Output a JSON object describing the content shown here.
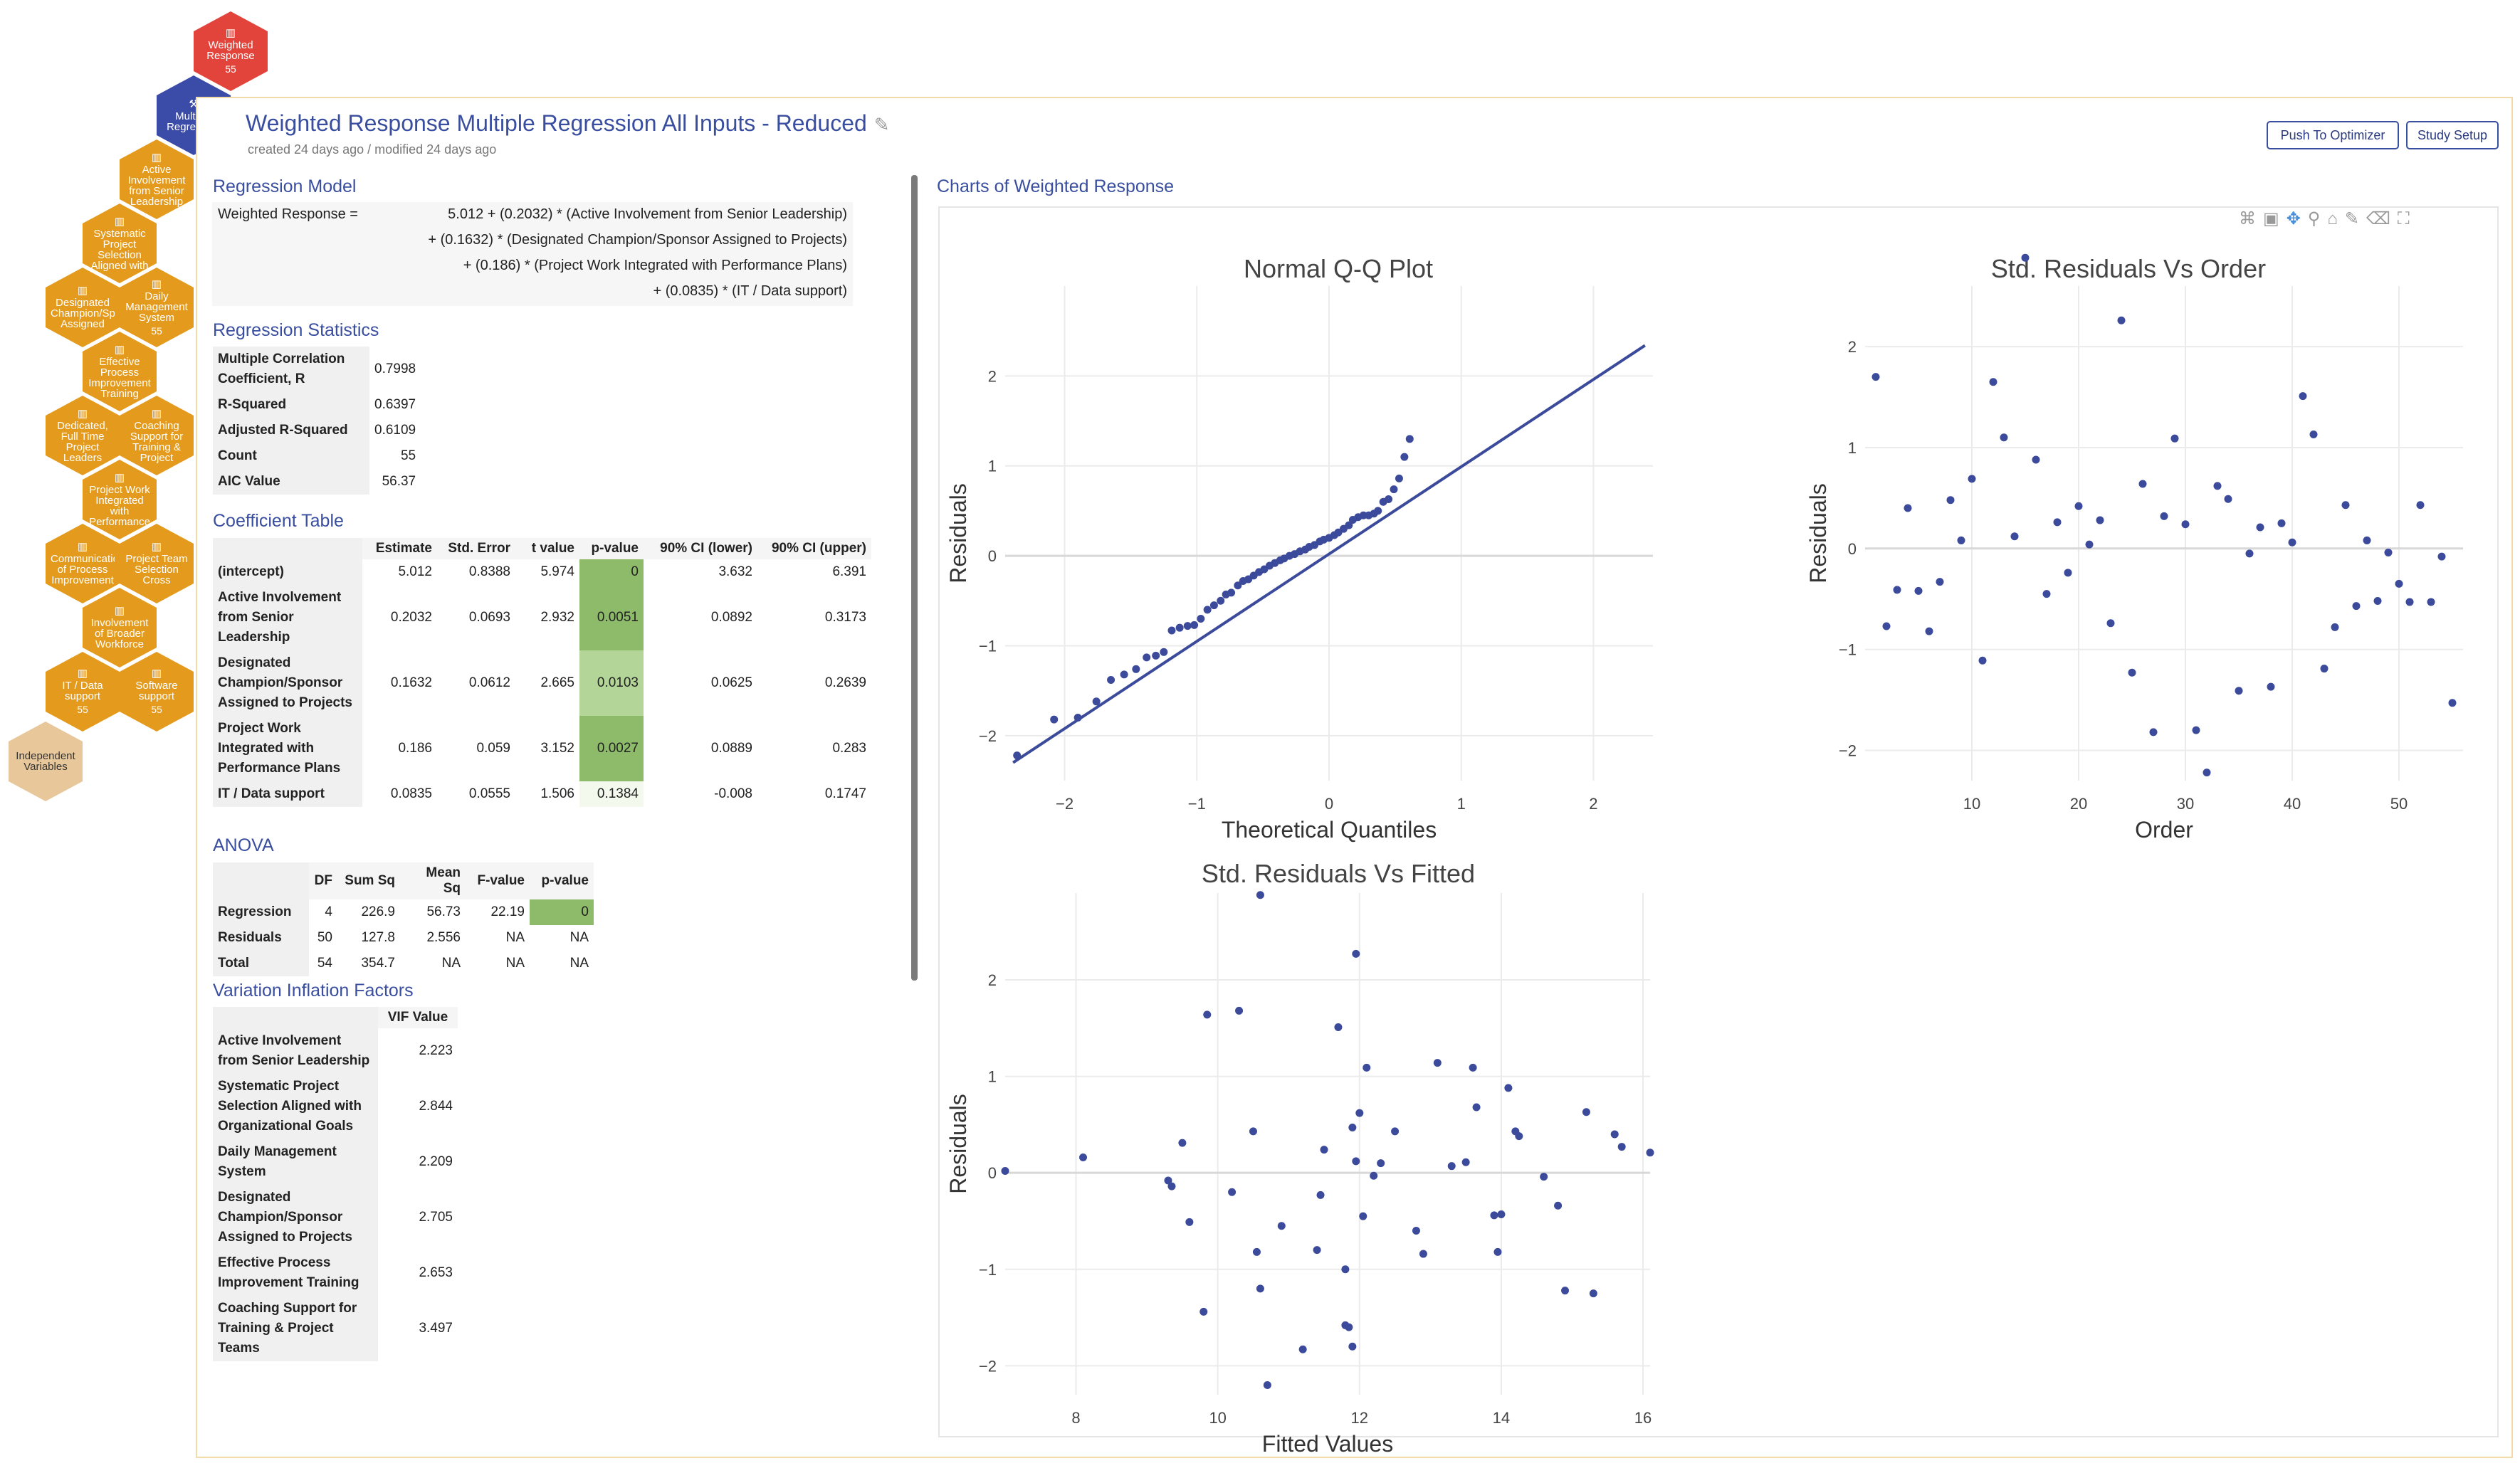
{
  "nav": {
    "hexes": [
      {
        "label": "Weighted Response",
        "count": "55"
      },
      {
        "label": "Multiple Regression"
      },
      {
        "label": "Active Involvement from Senior Leadership"
      },
      {
        "label": "Systematic Project Selection Aligned with"
      },
      {
        "label": "Designated Champion/Sponsor Assigned"
      },
      {
        "label": "Daily Management System",
        "count": "55"
      },
      {
        "label": "Effective Process Improvement Training"
      },
      {
        "label": "Dedicated, Full Time Project Leaders"
      },
      {
        "label": "Coaching Support for Training & Project"
      },
      {
        "label": "Project Work Integrated with Performance"
      },
      {
        "label": "Communication of Process Improvement"
      },
      {
        "label": "Project Team Selection Cross"
      },
      {
        "label": "Involvement of Broader Workforce"
      },
      {
        "label": "IT / Data support",
        "count": "55"
      },
      {
        "label": "Software support",
        "count": "55"
      },
      {
        "label": "Independent Variables"
      }
    ]
  },
  "header": {
    "title": "Weighted Response Multiple Regression All Inputs - Reduced",
    "subtitle": "created 24 days ago / modified 24 days ago",
    "push_label": "Push To Optimizer",
    "setup_label": "Study Setup"
  },
  "model": {
    "title": "Regression Model",
    "lhs": "Weighted Response =",
    "lines": [
      "5.012 + (0.2032) * (Active Involvement from Senior Leadership)",
      "+ (0.1632) * (Designated Champion/Sponsor Assigned to Projects)",
      "+ (0.186) * (Project Work Integrated with Performance Plans)",
      "+ (0.0835) * (IT / Data support)"
    ]
  },
  "stats": {
    "title": "Regression Statistics",
    "rows": [
      {
        "label": "Multiple Correlation Coefficient, R",
        "value": "0.7998"
      },
      {
        "label": "R-Squared",
        "value": "0.6397"
      },
      {
        "label": "Adjusted R-Squared",
        "value": "0.6109"
      },
      {
        "label": "Count",
        "value": "55"
      },
      {
        "label": "AIC Value",
        "value": "56.37"
      }
    ]
  },
  "coef": {
    "title": "Coefficient Table",
    "headers": [
      "Estimate",
      "Std. Error",
      "t value",
      "p-value",
      "90% CI (lower)",
      "90% CI (upper)"
    ],
    "rows": [
      {
        "label": "(intercept)",
        "cells": [
          "5.012",
          "0.8388",
          "5.974",
          "0",
          "3.632",
          "6.391"
        ]
      },
      {
        "label": "Active Involvement from Senior Leadership",
        "cells": [
          "0.2032",
          "0.0693",
          "2.932",
          "0.0051",
          "0.0892",
          "0.3173"
        ]
      },
      {
        "label": "Designated Champion/Sponsor Assigned to Projects",
        "cells": [
          "0.1632",
          "0.0612",
          "2.665",
          "0.0103",
          "0.0625",
          "0.2639"
        ]
      },
      {
        "label": "Project Work Integrated with Performance Plans",
        "cells": [
          "0.186",
          "0.059",
          "3.152",
          "0.0027",
          "0.0889",
          "0.283"
        ]
      },
      {
        "label": "IT / Data support",
        "cells": [
          "0.0835",
          "0.0555",
          "1.506",
          "0.1384",
          "-0.008",
          "0.1747"
        ]
      }
    ]
  },
  "anova": {
    "title": "ANOVA",
    "headers": [
      "DF",
      "Sum Sq",
      "Mean Sq",
      "F-value",
      "p-value"
    ],
    "rows": [
      {
        "label": "Regression",
        "cells": [
          "4",
          "226.9",
          "56.73",
          "22.19",
          "0"
        ]
      },
      {
        "label": "Residuals",
        "cells": [
          "50",
          "127.8",
          "2.556",
          "NA",
          "NA"
        ]
      },
      {
        "label": "Total",
        "cells": [
          "54",
          "354.7",
          "NA",
          "NA",
          "NA"
        ]
      }
    ]
  },
  "vif": {
    "title": "Variation Inflation Factors",
    "header": "VIF Value",
    "rows": [
      {
        "label": "Active Involvement from Senior Leadership",
        "value": "2.223"
      },
      {
        "label": "Systematic Project Selection Aligned with Organizational Goals",
        "value": "2.844"
      },
      {
        "label": "Daily Management System",
        "value": "2.209"
      },
      {
        "label": "Designated Champion/Sponsor Assigned to Projects",
        "value": "2.705"
      },
      {
        "label": "Effective Process Improvement Training",
        "value": "2.653"
      },
      {
        "label": "Coaching Support for Training & Project Teams",
        "value": "3.497"
      }
    ]
  },
  "charts_title": "Charts of Weighted Response",
  "colors": {
    "accent": "#3a4ea0",
    "marker": "#3b4a9a",
    "pgreen_strong": "#8dbb6a",
    "pgreen_light": "#b3d597"
  },
  "chart_data": [
    {
      "type": "scatter",
      "title": "Normal Q-Q Plot",
      "xlabel": "Theoretical Quantiles",
      "ylabel": "Residuals",
      "xlim": [
        -2.45,
        2.45
      ],
      "ylim": [
        -2.5,
        3.0
      ],
      "xticks": [
        -2,
        -1,
        0,
        1,
        2
      ],
      "yticks": [
        -2,
        -1,
        0,
        1,
        2
      ],
      "grid": true,
      "x": [
        -2.36,
        -2.08,
        -1.9,
        -1.76,
        -1.65,
        -1.55,
        -1.46,
        -1.38,
        -1.31,
        -1.25,
        -1.19,
        -1.13,
        -1.07,
        -1.02,
        -0.97,
        -0.92,
        -0.87,
        -0.82,
        -0.78,
        -0.74,
        -0.69,
        -0.65,
        -0.61,
        -0.57,
        -0.53,
        -0.49,
        -0.45,
        -0.41,
        -0.37,
        -0.34,
        -0.3,
        -0.26,
        -0.22,
        -0.18,
        -0.15,
        -0.11,
        -0.07,
        -0.04,
        0.0,
        0.04,
        0.07,
        0.11,
        0.15,
        0.18,
        0.22,
        0.26,
        0.3,
        0.34,
        0.37,
        0.41,
        0.45,
        0.49,
        0.53,
        0.57,
        0.61
      ],
      "y": [
        -2.22,
        -1.82,
        -1.8,
        -1.62,
        -1.38,
        -1.32,
        -1.26,
        -1.13,
        -1.11,
        -1.07,
        -0.83,
        -0.8,
        -0.78,
        -0.77,
        -0.7,
        -0.6,
        -0.55,
        -0.5,
        -0.43,
        -0.41,
        -0.33,
        -0.28,
        -0.26,
        -0.22,
        -0.18,
        -0.15,
        -0.11,
        -0.08,
        -0.05,
        -0.03,
        0.0,
        0.02,
        0.05,
        0.07,
        0.1,
        0.12,
        0.16,
        0.18,
        0.2,
        0.23,
        0.26,
        0.3,
        0.34,
        0.4,
        0.43,
        0.45,
        0.45,
        0.47,
        0.5,
        0.6,
        0.63,
        0.74,
        0.86,
        1.1,
        1.3
      ]
    },
    {
      "type": "scatter",
      "title": "Std. Residuals Vs Order",
      "xlabel": "Order",
      "ylabel": "Residuals",
      "xlim": [
        0,
        56
      ],
      "ylim": [
        -2.3,
        2.6
      ],
      "xticks": [
        10,
        20,
        30,
        40,
        50
      ],
      "yticks": [
        -2,
        -1,
        0,
        1,
        2
      ],
      "grid": true,
      "x": [
        1,
        2,
        3,
        4,
        5,
        6,
        7,
        8,
        9,
        10,
        11,
        12,
        13,
        14,
        15,
        16,
        17,
        18,
        19,
        20,
        21,
        22,
        23,
        24,
        25,
        26,
        27,
        28,
        29,
        30,
        31,
        32,
        33,
        34,
        35,
        36,
        37,
        38,
        39,
        40,
        41,
        42,
        43,
        44,
        45,
        46,
        47,
        48,
        49,
        50,
        51,
        52,
        53,
        54,
        55
      ],
      "y": [
        1.7,
        -0.77,
        -0.41,
        0.4,
        -0.42,
        -0.82,
        -0.33,
        0.48,
        0.08,
        0.69,
        -1.11,
        1.65,
        1.1,
        0.12,
        2.88,
        0.88,
        -0.45,
        0.26,
        -0.24,
        0.42,
        0.04,
        0.28,
        -0.74,
        2.26,
        -1.23,
        0.64,
        -1.82,
        0.32,
        1.09,
        0.24,
        -1.8,
        -2.22,
        0.62,
        0.49,
        -1.41,
        -0.05,
        0.21,
        -1.37,
        0.25,
        0.06,
        1.51,
        1.13,
        -1.19,
        -0.78,
        0.43,
        -0.57,
        0.08,
        -0.52,
        -0.04,
        -0.35,
        -0.53,
        0.43,
        -0.53,
        -0.08,
        -1.53
      ]
    },
    {
      "type": "scatter",
      "title": "Std. Residuals Vs Fitted",
      "xlabel": "Fitted Values",
      "ylabel": "Residuals",
      "xlim": [
        7.0,
        16.1
      ],
      "ylim": [
        -2.3,
        2.9
      ],
      "xticks": [
        8,
        10,
        12,
        14,
        16
      ],
      "yticks": [
        -2,
        -1,
        0,
        1,
        2
      ],
      "grid": true,
      "x": [
        7.0,
        8.1,
        9.3,
        9.35,
        9.5,
        9.6,
        9.8,
        9.85,
        10.2,
        10.3,
        10.5,
        10.55,
        10.6,
        10.7,
        10.9,
        11.2,
        11.4,
        11.45,
        11.5,
        11.7,
        11.8,
        11.85,
        11.9,
        11.95,
        12.0,
        12.05,
        12.1,
        12.2,
        12.3,
        12.5,
        12.8,
        12.9,
        13.1,
        13.3,
        13.5,
        13.6,
        13.65,
        13.9,
        13.95,
        14.0,
        14.1,
        14.2,
        14.25,
        14.6,
        14.8,
        14.9,
        15.2,
        15.3,
        15.6,
        15.7,
        16.1,
        10.6,
        11.9,
        11.8,
        11.95
      ],
      "y": [
        0.02,
        0.16,
        -0.08,
        -0.14,
        0.31,
        -0.51,
        -1.44,
        1.64,
        -0.2,
        1.68,
        0.43,
        -0.82,
        2.88,
        -2.2,
        -0.55,
        -1.83,
        -0.8,
        -0.23,
        0.24,
        1.51,
        -1.58,
        -1.6,
        0.47,
        2.27,
        0.62,
        -0.45,
        1.09,
        -0.03,
        0.1,
        0.43,
        -0.6,
        -0.84,
        1.14,
        0.07,
        0.11,
        1.09,
        0.68,
        -0.44,
        -0.82,
        -0.43,
        0.88,
        0.43,
        0.38,
        -0.04,
        -0.34,
        -1.22,
        0.63,
        -1.25,
        0.4,
        0.27,
        0.21,
        -1.2,
        -1.8,
        -1.0,
        0.12
      ]
    }
  ]
}
